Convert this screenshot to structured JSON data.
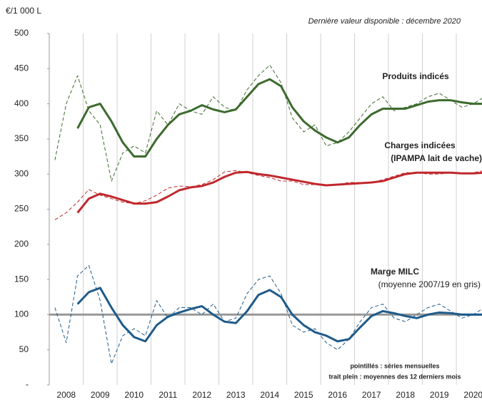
{
  "chart_data": {
    "type": "line",
    "subtitle": "Dernière valeur disponible : décembre 2020",
    "y_label": "€/1 000 L",
    "categories": [
      null,
      "2008",
      null,
      null,
      "2009",
      null,
      null,
      "2010",
      null,
      null,
      "2011",
      null,
      null,
      "2012",
      null,
      null,
      "2013",
      null,
      null,
      "2014",
      null,
      null,
      "2015",
      null,
      null,
      "2016",
      null,
      null,
      "2017",
      null,
      null,
      "2018",
      null,
      null,
      "2019",
      null,
      null,
      "2020",
      null
    ],
    "ylim": [
      0,
      500
    ],
    "yticks": [
      {
        "value": 0,
        "label": "-"
      },
      50,
      100,
      150,
      200,
      250,
      300,
      350,
      400,
      450,
      500
    ],
    "reference": {
      "value": 100,
      "color": "#999999"
    },
    "series": [
      {
        "name": "Produits indicés",
        "color": "#3d6b2e",
        "values": [
          320,
          400,
          440,
          390,
          370,
          290,
          330,
          340,
          330,
          390,
          370,
          400,
          390,
          385,
          410,
          395,
          390,
          420,
          440,
          455,
          430,
          380,
          360,
          370,
          340,
          345,
          360,
          380,
          400,
          410,
          390,
          395,
          400,
          410,
          415,
          405,
          395,
          400,
          410
        ],
        "average": [
          null,
          null,
          365,
          395,
          400,
          375,
          345,
          325,
          325,
          350,
          370,
          385,
          390,
          398,
          392,
          388,
          392,
          410,
          428,
          435,
          425,
          395,
          375,
          362,
          352,
          345,
          352,
          370,
          385,
          393,
          393,
          393,
          398,
          403,
          405,
          405,
          402,
          400,
          400
        ]
      },
      {
        "name": "Charges indicées",
        "note": "(IPAMPA lait de vache)",
        "color": "#c0282d",
        "values": [
          235,
          245,
          260,
          278,
          270,
          265,
          260,
          258,
          262,
          270,
          280,
          283,
          282,
          285,
          292,
          303,
          305,
          302,
          298,
          295,
          290,
          290,
          285,
          285,
          283,
          285,
          288,
          288,
          288,
          292,
          297,
          302,
          302,
          300,
          300,
          302,
          300,
          302,
          305
        ],
        "average": [
          null,
          null,
          245,
          265,
          272,
          268,
          263,
          258,
          258,
          260,
          268,
          277,
          281,
          283,
          288,
          296,
          302,
          303,
          300,
          298,
          295,
          292,
          289,
          286,
          284,
          285,
          286,
          287,
          288,
          290,
          295,
          300,
          302,
          302,
          302,
          302,
          301,
          301,
          302
        ]
      },
      {
        "name": "Marge MILC",
        "note": "(moyenne 2007/19 en gris)",
        "color": "#1f5b8a",
        "values": [
          110,
          60,
          155,
          170,
          120,
          30,
          70,
          80,
          70,
          120,
          95,
          110,
          110,
          100,
          115,
          90,
          95,
          130,
          150,
          155,
          130,
          85,
          75,
          80,
          60,
          50,
          65,
          90,
          110,
          115,
          95,
          90,
          100,
          110,
          115,
          105,
          95,
          100,
          110
        ],
        "average": [
          null,
          null,
          115,
          132,
          138,
          110,
          85,
          68,
          62,
          85,
          97,
          103,
          108,
          112,
          100,
          90,
          88,
          105,
          128,
          135,
          125,
          100,
          85,
          75,
          70,
          62,
          65,
          82,
          98,
          105,
          102,
          98,
          95,
          100,
          103,
          102,
          100,
          100,
          100
        ]
      }
    ],
    "footnotes": [
      "pointillés : séries mensuelles",
      "trait plein : moyennes des 12 derniers mois"
    ]
  }
}
